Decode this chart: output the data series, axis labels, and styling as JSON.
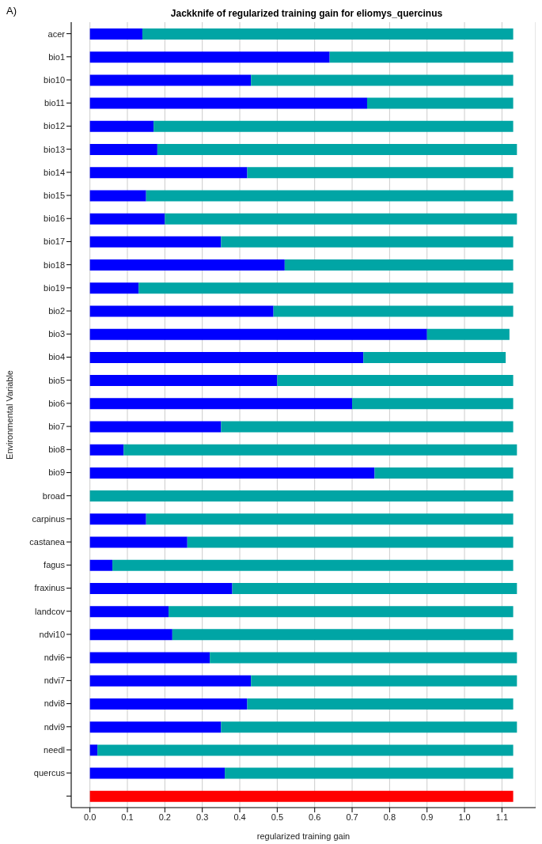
{
  "chart_data": {
    "type": "bar",
    "orientation": "horizontal",
    "title": "Jackknife of regularized training gain for eliomys_quercinus",
    "xlabel": "regularized training gain",
    "ylabel": "Environmental Variable",
    "annotations": [
      "A)"
    ],
    "categories": [
      "acer",
      "bio1",
      "bio10",
      "bio11",
      "bio12",
      "bio13",
      "bio14",
      "bio15",
      "bio16",
      "bio17",
      "bio18",
      "bio19",
      "bio2",
      "bio3",
      "bio4",
      "bio5",
      "bio6",
      "bio7",
      "bio8",
      "bio9",
      "broad",
      "carpinus",
      "castanea",
      "fagus",
      "fraxinus",
      "landcov",
      "ndvi10",
      "ndvi6",
      "ndvi7",
      "ndvi8",
      "ndvi9",
      "needl",
      "quercus",
      null
    ],
    "stacked": true,
    "series": [
      {
        "color": "#0000ff",
        "values": [
          0.14,
          0.64,
          0.43,
          0.74,
          0.17,
          0.18,
          0.42,
          0.15,
          0.2,
          0.35,
          0.52,
          0.13,
          0.49,
          0.9,
          0.73,
          0.5,
          0.7,
          0.35,
          0.09,
          0.76,
          0.0,
          0.15,
          0.26,
          0.06,
          0.38,
          0.21,
          0.22,
          0.32,
          0.43,
          0.42,
          0.35,
          0.02,
          0.36,
          null
        ]
      },
      {
        "color": "#00a5a5",
        "values": [
          0.99,
          0.49,
          0.7,
          0.39,
          0.96,
          0.96,
          0.71,
          0.98,
          0.94,
          0.78,
          0.61,
          1.0,
          0.64,
          0.22,
          0.38,
          0.63,
          0.43,
          0.78,
          1.05,
          0.37,
          1.13,
          0.98,
          0.87,
          1.07,
          0.76,
          0.92,
          0.91,
          0.82,
          0.71,
          0.71,
          0.79,
          1.11,
          0.77,
          null
        ]
      },
      {
        "color": "#ff0000",
        "values": [
          null,
          null,
          null,
          null,
          null,
          null,
          null,
          null,
          null,
          null,
          null,
          null,
          null,
          null,
          null,
          null,
          null,
          null,
          null,
          null,
          null,
          null,
          null,
          null,
          null,
          null,
          null,
          null,
          null,
          null,
          null,
          null,
          null,
          1.13
        ]
      }
    ],
    "xlim": [
      -0.05,
      1.19
    ],
    "xticks": [
      {
        "value": 0,
        "label": "0.0"
      },
      0.1,
      0.2,
      0.3,
      0.4,
      0.5,
      0.6,
      0.7,
      0.8,
      0.9,
      {
        "value": 1,
        "label": "1.0"
      },
      1.1
    ],
    "grid": "x"
  }
}
